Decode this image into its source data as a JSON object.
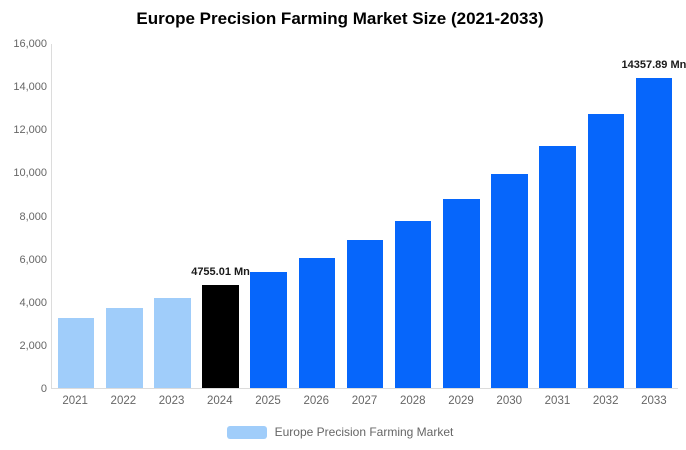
{
  "title": "Europe Precision Farming Market Size (2021-2033)",
  "legend": {
    "label": "Europe Precision Farming Market",
    "swatch_color": "#A0CDFA"
  },
  "colors": {
    "historical_bar": "#A0CDFA",
    "highlight_bar": "#000000",
    "forecast_bar": "#0666FB",
    "axis_line": "#DCDCDC",
    "tick_text": "#666666",
    "data_label_text": "#1A1A1A",
    "title_text": "#000000"
  },
  "y_axis": {
    "tick_labels": [
      "0",
      "2,000",
      "4,000",
      "6,000",
      "8,000",
      "10,000",
      "12,000",
      "14,000",
      "16,000"
    ],
    "min": 0,
    "max": 16000,
    "interval": 2000
  },
  "chart_data": {
    "type": "bar",
    "title": "Europe Precision Farming Market Size (2021-2033)",
    "categories": [
      "2021",
      "2022",
      "2023",
      "2024",
      "2025",
      "2026",
      "2027",
      "2028",
      "2029",
      "2030",
      "2031",
      "2032",
      "2033"
    ],
    "series": [
      {
        "name": "Europe Precision Farming Market",
        "values": [
          3255,
          3705,
          4185,
          4755.01,
          5370,
          6045,
          6865,
          7730,
          8780,
          9910,
          11210,
          12705,
          14357.89
        ]
      }
    ],
    "bar_labels": [
      "",
      "",
      "",
      "4755.01 Mn",
      "",
      "",
      "",
      "",
      "",
      "",
      "",
      "",
      "14357.89 Mn"
    ],
    "bar_colors": [
      "#A0CDFA",
      "#A0CDFA",
      "#A0CDFA",
      "#000000",
      "#0666FB",
      "#0666FB",
      "#0666FB",
      "#0666FB",
      "#0666FB",
      "#0666FB",
      "#0666FB",
      "#0666FB",
      "#0666FB"
    ],
    "xlabel": "",
    "ylabel": "",
    "ylim": [
      0,
      16000
    ],
    "grid": false,
    "legend_position": "bottom",
    "unit": "Mn"
  }
}
